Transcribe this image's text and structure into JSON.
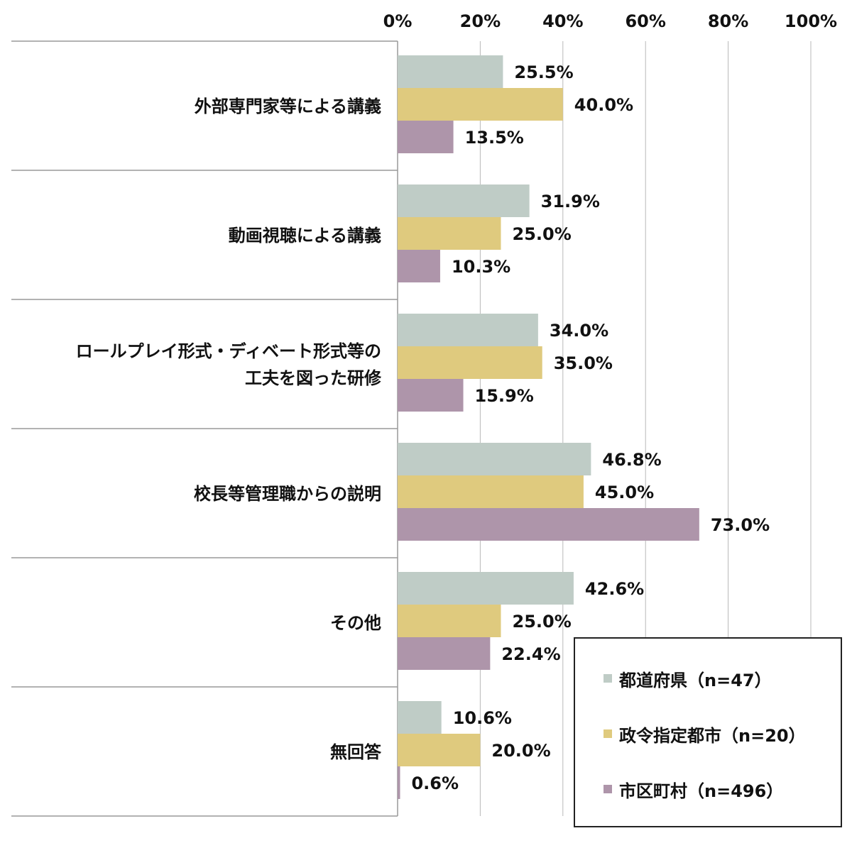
{
  "chart_data": {
    "type": "bar",
    "orientation": "horizontal",
    "categories": [
      [
        "外部専門家等による講義"
      ],
      [
        "動画視聴による講義"
      ],
      [
        "ロールプレイ形式・ディベート形式等の",
        "工夫を図った研修"
      ],
      [
        "校長等管理職からの説明"
      ],
      [
        "その他"
      ],
      [
        "無回答"
      ]
    ],
    "series": [
      {
        "name": "都道府県（n=47）",
        "color": "#bfccc6",
        "values": [
          25.5,
          31.9,
          34.0,
          46.8,
          42.6,
          10.6
        ]
      },
      {
        "name": "政令指定都市（n=20）",
        "color": "#dfca7e",
        "values": [
          40.0,
          25.0,
          35.0,
          45.0,
          25.0,
          20.0
        ]
      },
      {
        "name": "市区町村（n=496）",
        "color": "#ae95aa",
        "values": [
          13.5,
          10.3,
          15.9,
          73.0,
          22.4,
          0.6
        ]
      }
    ],
    "value_labels": [
      [
        "25.5%",
        "31.9%",
        "34.0%",
        "46.8%",
        "42.6%",
        "10.6%"
      ],
      [
        "40.0%",
        "25.0%",
        "35.0%",
        "45.0%",
        "25.0%",
        "20.0%"
      ],
      [
        "13.5%",
        "10.3%",
        "15.9%",
        "73.0%",
        "22.4%",
        "0.6%"
      ]
    ],
    "x_ticks": [
      "0%",
      "20%",
      "40%",
      "60%",
      "80%",
      "100%"
    ],
    "xlim": [
      0,
      100
    ],
    "grid": true,
    "legend_position": "bottom-right"
  }
}
